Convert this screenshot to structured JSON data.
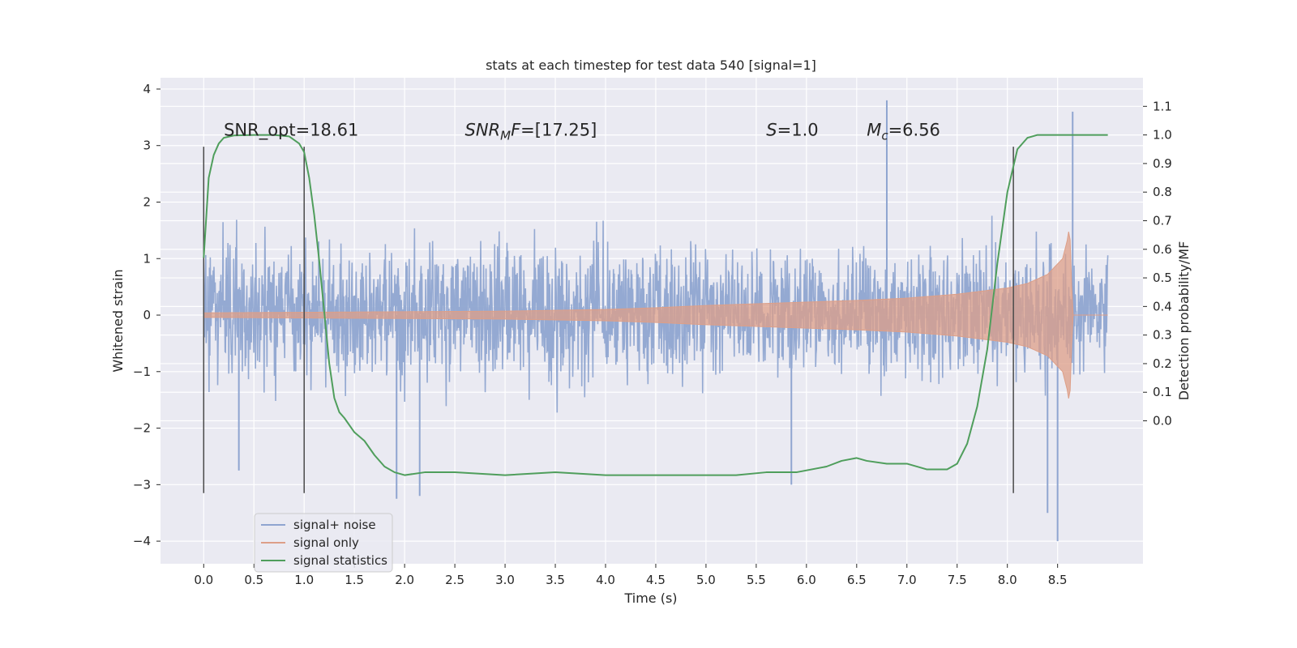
{
  "chart_data": {
    "type": "line",
    "title": "stats at each timestep for test data 540 [signal=1]",
    "xlabel": "Time (s)",
    "ylabel": "Whitened strain",
    "ylabel_right": "Detection probability/MF",
    "xlim": [
      -0.43,
      9.35
    ],
    "ylim": [
      -4.4,
      4.2
    ],
    "ylim_right": [
      -0.5,
      1.2
    ],
    "x_ticks": [
      "0.0",
      "0.5",
      "1.0",
      "1.5",
      "2.0",
      "2.5",
      "3.0",
      "3.5",
      "4.0",
      "4.5",
      "5.0",
      "5.5",
      "6.0",
      "6.5",
      "7.0",
      "7.5",
      "8.0",
      "8.5"
    ],
    "y_ticks": [
      "−4",
      "−3",
      "−2",
      "−1",
      "0",
      "1",
      "2",
      "3",
      "4"
    ],
    "y_ticks_right": [
      "0.0",
      "0.1",
      "0.2",
      "0.3",
      "0.4",
      "0.5",
      "0.6",
      "0.7",
      "0.8",
      "0.9",
      "1.0",
      "1.1"
    ],
    "grid": true,
    "annotations": [
      {
        "text": "SNR_opt=18.61",
        "x": 0.2,
        "y": 3.15
      },
      {
        "text": "SNR_MF=[17.25]",
        "x": 2.6,
        "y": 3.15
      },
      {
        "text": "S=1.0",
        "x": 5.6,
        "y": 3.15
      },
      {
        "text": "M_c=6.56",
        "x": 6.6,
        "y": 3.15
      }
    ],
    "vertical_lines": [
      0.0,
      1.0,
      8.06
    ],
    "vertical_line_range": [
      -3.15,
      2.98
    ],
    "legend": {
      "location": "lower left",
      "entries": [
        "signal+ noise",
        "signal only",
        "signal statistics"
      ]
    },
    "series": [
      {
        "name": "signal+ noise",
        "color": "#8fa5d0",
        "description_axis": "left",
        "x_range": [
          0.0,
          9.0
        ],
        "typical_band": [
          -1.6,
          1.7
        ],
        "extremes": [
          {
            "x": 6.8,
            "y": 3.8
          },
          {
            "x": 8.65,
            "y": 3.6
          },
          {
            "x": 8.5,
            "y": -4.0
          },
          {
            "x": 8.4,
            "y": -3.5
          },
          {
            "x": 0.35,
            "y": -2.75
          },
          {
            "x": 1.92,
            "y": -3.25
          },
          {
            "x": 2.15,
            "y": -3.2
          },
          {
            "x": 5.85,
            "y": -3.0
          }
        ]
      },
      {
        "name": "signal only",
        "color": "#dd9f88",
        "description_axis": "left",
        "x": [
          0.0,
          1.0,
          2.0,
          3.0,
          4.0,
          4.5,
          5.0,
          5.5,
          6.0,
          6.5,
          7.0,
          7.5,
          8.0,
          8.2,
          8.4,
          8.55,
          8.6,
          8.62,
          8.65,
          9.0
        ],
        "amplitude": [
          0.04,
          0.05,
          0.06,
          0.07,
          0.1,
          0.13,
          0.17,
          0.2,
          0.23,
          0.26,
          0.3,
          0.37,
          0.48,
          0.56,
          0.72,
          1.0,
          1.35,
          1.6,
          0.0,
          0.0
        ]
      },
      {
        "name": "signal statistics",
        "color": "#4f9e5c",
        "description_axis": "right",
        "x": [
          0.0,
          0.05,
          0.1,
          0.15,
          0.2,
          0.3,
          0.5,
          0.7,
          0.85,
          0.95,
          1.0,
          1.05,
          1.1,
          1.15,
          1.2,
          1.25,
          1.3,
          1.35,
          1.4,
          1.5,
          1.6,
          1.7,
          1.8,
          1.9,
          2.0,
          2.2,
          2.5,
          3.0,
          3.5,
          4.0,
          4.5,
          5.0,
          5.3,
          5.6,
          5.9,
          6.2,
          6.35,
          6.5,
          6.6,
          6.8,
          7.0,
          7.2,
          7.4,
          7.5,
          7.6,
          7.7,
          7.8,
          7.9,
          8.0,
          8.1,
          8.2,
          8.3,
          8.5,
          9.0
        ],
        "values": [
          0.57,
          0.85,
          0.93,
          0.97,
          0.99,
          0.998,
          1.0,
          1.0,
          0.995,
          0.97,
          0.94,
          0.85,
          0.72,
          0.56,
          0.38,
          0.2,
          0.08,
          0.03,
          0.01,
          -0.04,
          -0.07,
          -0.12,
          -0.16,
          -0.18,
          -0.19,
          -0.18,
          -0.18,
          -0.19,
          -0.18,
          -0.19,
          -0.19,
          -0.19,
          -0.19,
          -0.18,
          -0.18,
          -0.16,
          -0.14,
          -0.13,
          -0.14,
          -0.15,
          -0.15,
          -0.17,
          -0.17,
          -0.15,
          -0.08,
          0.05,
          0.25,
          0.55,
          0.8,
          0.95,
          0.99,
          1.0,
          1.0,
          1.0
        ]
      }
    ]
  }
}
